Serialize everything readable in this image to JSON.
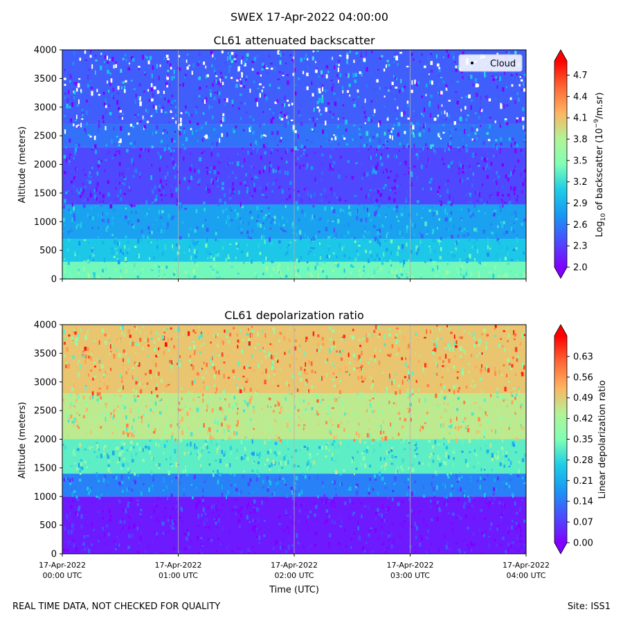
{
  "figure": {
    "suptitle": "SWEX 17-Apr-2022 04:00:00",
    "footer_left": "REAL TIME DATA, NOT CHECKED FOR QUALITY",
    "footer_right": "Site: ISS1"
  },
  "chart_data": [
    {
      "type": "heatmap",
      "title": "CL61 attenuated backscatter",
      "xlabel": "",
      "ylabel": "Altitude (meters)",
      "x_ticks": [
        "",
        "",
        "",
        "",
        ""
      ],
      "xlim_hours": [
        0,
        4
      ],
      "ylim": [
        0,
        4000
      ],
      "y_ticks": [
        0,
        500,
        1000,
        1500,
        2000,
        2500,
        3000,
        3500,
        4000
      ],
      "colorbar": {
        "label": "Log10 of backscatter (10^-9/m.sr)",
        "label_main": "Log",
        "label_sub": "10",
        "label_mid": " of backscatter (10",
        "label_sup": "−9",
        "label_end": "/m.sr)",
        "min": 2.0,
        "max": 4.9,
        "ticks": [
          "2.0",
          "2.3",
          "2.6",
          "2.9",
          "3.2",
          "3.5",
          "3.8",
          "4.1",
          "4.4",
          "4.7"
        ],
        "extend": "both",
        "cmap": "rainbow"
      },
      "legend": {
        "entries": [
          "Cloud"
        ],
        "location": "top-right",
        "marker_color": "#000000"
      },
      "layers_log10": [
        {
          "from_m": 0,
          "to_m": 300,
          "value": 3.4
        },
        {
          "from_m": 300,
          "to_m": 700,
          "value": 3.05
        },
        {
          "from_m": 700,
          "to_m": 1300,
          "value": 2.8
        },
        {
          "from_m": 1300,
          "to_m": 2300,
          "value": 2.35
        },
        {
          "from_m": 2300,
          "to_m": 2700,
          "value": 2.55
        },
        {
          "from_m": 2700,
          "to_m": 4000,
          "value": 2.45
        }
      ]
    },
    {
      "type": "heatmap",
      "title": "CL61 depolarization ratio",
      "xlabel": "Time (UTC)",
      "ylabel": "Altitude (meters)",
      "xlim_hours": [
        0,
        4
      ],
      "ylim": [
        0,
        4000
      ],
      "x_ticks": [
        "17-Apr-2022\n00:00 UTC",
        "17-Apr-2022\n01:00 UTC",
        "17-Apr-2022\n02:00 UTC",
        "17-Apr-2022\n03:00 UTC",
        "17-Apr-2022\n04:00 UTC"
      ],
      "x_tick_dates": [
        "17-Apr-2022",
        "17-Apr-2022",
        "17-Apr-2022",
        "17-Apr-2022",
        "17-Apr-2022"
      ],
      "x_tick_times": [
        "00:00 UTC",
        "01:00 UTC",
        "02:00 UTC",
        "03:00 UTC",
        "04:00 UTC"
      ],
      "y_ticks": [
        0,
        500,
        1000,
        1500,
        2000,
        2500,
        3000,
        3500,
        4000
      ],
      "colorbar": {
        "label": "Linear depolarization ratio",
        "min": 0.0,
        "max": 0.7,
        "ticks": [
          "0.00",
          "0.07",
          "0.14",
          "0.21",
          "0.28",
          "0.35",
          "0.42",
          "0.49",
          "0.56",
          "0.63"
        ],
        "extend": "both",
        "cmap": "rainbow"
      },
      "layers_ratio": [
        {
          "from_m": 0,
          "to_m": 1000,
          "value": 0.03
        },
        {
          "from_m": 1000,
          "to_m": 1400,
          "value": 0.15
        },
        {
          "from_m": 1400,
          "to_m": 2000,
          "value": 0.32
        },
        {
          "from_m": 2000,
          "to_m": 2800,
          "value": 0.45
        },
        {
          "from_m": 2800,
          "to_m": 4000,
          "value": 0.5
        }
      ]
    }
  ]
}
